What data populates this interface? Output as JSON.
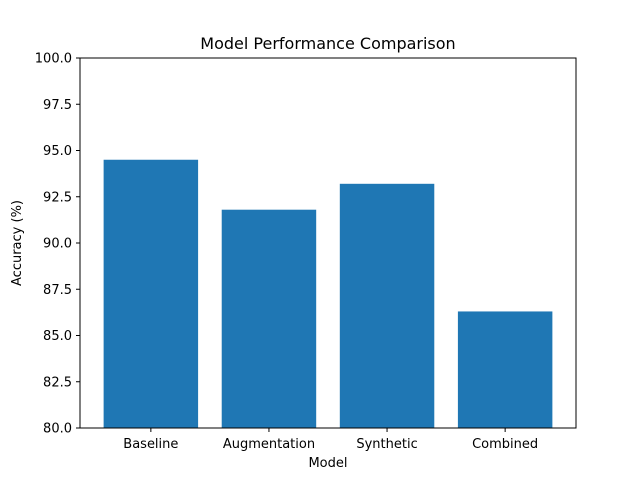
{
  "chart_data": {
    "type": "bar",
    "title": "Model Performance Comparison",
    "xlabel": "Model",
    "ylabel": "Accuracy (%)",
    "categories": [
      "Baseline",
      "Augmentation",
      "Synthetic",
      "Combined"
    ],
    "values": [
      94.5,
      91.8,
      93.2,
      86.3
    ],
    "ylim": [
      80,
      100
    ],
    "yticks": [
      80.0,
      82.5,
      85.0,
      87.5,
      90.0,
      92.5,
      95.0,
      97.5,
      100.0
    ],
    "ytick_labels": [
      "80.0",
      "82.5",
      "85.0",
      "87.5",
      "90.0",
      "92.5",
      "95.0",
      "97.5",
      "100.0"
    ],
    "bar_color": "#1f77b4",
    "grid": false,
    "legend": "none"
  }
}
